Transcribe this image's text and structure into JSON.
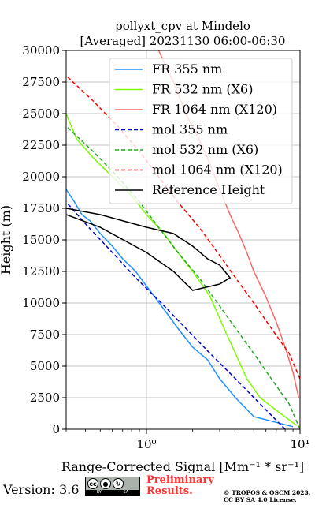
{
  "chart_data": {
    "type": "line",
    "title": "pollyxt_cpv at Mindelo",
    "subtitle": "[Averaged] 20231130 06:00-06:30",
    "xlabel": "Range-Corrected Signal [Mm⁻¹ * sr⁻¹]",
    "ylabel": "Height (m)",
    "xscale": "log",
    "xlim": [
      0.3,
      10
    ],
    "ylim": [
      0,
      30000
    ],
    "x_tick_labels": [
      "10⁰",
      "10¹"
    ],
    "x_ticks": [
      1,
      10
    ],
    "y_ticks": [
      0,
      2500,
      5000,
      7500,
      10000,
      12500,
      15000,
      17500,
      20000,
      22500,
      25000,
      27500,
      30000
    ],
    "grid": true,
    "legend_position": "top-right",
    "series": [
      {
        "name": "FR 355 nm",
        "color": "#1e90ff",
        "style": "solid",
        "x": [
          9.0,
          5.0,
          3.8,
          3.0,
          2.5,
          2.0,
          1.6,
          1.3,
          1.05,
          0.85,
          0.7,
          0.6,
          0.5,
          0.43,
          0.38,
          0.34,
          0.3
        ],
        "y": [
          200,
          1000,
          2500,
          4000,
          5500,
          6500,
          8000,
          9500,
          11000,
          12500,
          13500,
          14500,
          15500,
          16500,
          17000,
          18000,
          19000
        ]
      },
      {
        "name": "FR 532 nm (X6)",
        "color": "#7cfc00",
        "style": "solid",
        "x": [
          9.5,
          7.0,
          5.5,
          4.5,
          3.8,
          3.2,
          2.6,
          2.0,
          1.6,
          1.3,
          1.0,
          0.8,
          0.6,
          0.45,
          0.35,
          0.3
        ],
        "y": [
          300,
          1500,
          2500,
          4000,
          6000,
          8000,
          10500,
          12500,
          14000,
          15500,
          17000,
          18500,
          20000,
          21500,
          23000,
          25000
        ]
      },
      {
        "name": "FR 1064 nm (X120)",
        "color": "#ff6666",
        "style": "solid",
        "x": [
          9.8,
          9.0,
          8.0,
          7.0,
          6.0,
          5.0,
          4.5,
          4.0,
          3.5,
          3.0,
          2.6,
          2.2,
          1.8,
          1.5,
          1.2
        ],
        "y": [
          2500,
          4500,
          6500,
          8500,
          10500,
          12500,
          14000,
          15500,
          17000,
          19000,
          21000,
          23000,
          25000,
          27500,
          30000
        ]
      },
      {
        "name": "mol 355 nm",
        "color": "#0000cd",
        "style": "dashed",
        "x": [
          8.0,
          5.5,
          3.8,
          2.6,
          1.8,
          1.25,
          0.85,
          0.6,
          0.42,
          0.3
        ],
        "y": [
          0,
          2000,
          4000,
          6000,
          8000,
          10000,
          12000,
          14000,
          16000,
          18000
        ]
      },
      {
        "name": "mol 532 nm (X6)",
        "color": "#22aa22",
        "style": "dashed",
        "x": [
          10.0,
          8.5,
          6.5,
          5.0,
          3.8,
          2.9,
          2.2,
          1.6,
          1.2,
          0.9,
          0.65,
          0.45,
          0.3
        ],
        "y": [
          0,
          2000,
          4000,
          6000,
          8000,
          10000,
          12000,
          14000,
          16000,
          18000,
          20000,
          22000,
          24000
        ]
      },
      {
        "name": "mol 1064 nm (X120)",
        "color": "#ff0000",
        "style": "dashed",
        "x": [
          10.0,
          8.5,
          6.5,
          5.0,
          3.8,
          2.9,
          2.2,
          1.6,
          1.2,
          0.9,
          0.65,
          0.45,
          0.3
        ],
        "y": [
          4000,
          6000,
          8000,
          10000,
          12000,
          14000,
          16000,
          18000,
          20000,
          22000,
          24000,
          26000,
          28000
        ]
      },
      {
        "name": "Reference Height",
        "color": "#000000",
        "style": "solid",
        "x": [
          0.3,
          0.5,
          1.0,
          1.5,
          2.0,
          2.5,
          3.0,
          3.5,
          3.0,
          2.0,
          1.5,
          1.0,
          0.5,
          0.3
        ],
        "y": [
          17500,
          17000,
          16000,
          15500,
          14500,
          13500,
          13000,
          12000,
          11500,
          11000,
          12500,
          14000,
          16000,
          17000
        ]
      }
    ]
  },
  "footer": {
    "version": "Version: 3.6",
    "license_badge": [
      "BY",
      "SA"
    ],
    "preliminary": [
      "Preliminary",
      "Results."
    ],
    "copyright": [
      "© TROPOS & OSCM 2023.",
      "CC BY SA 4.0 License."
    ]
  }
}
